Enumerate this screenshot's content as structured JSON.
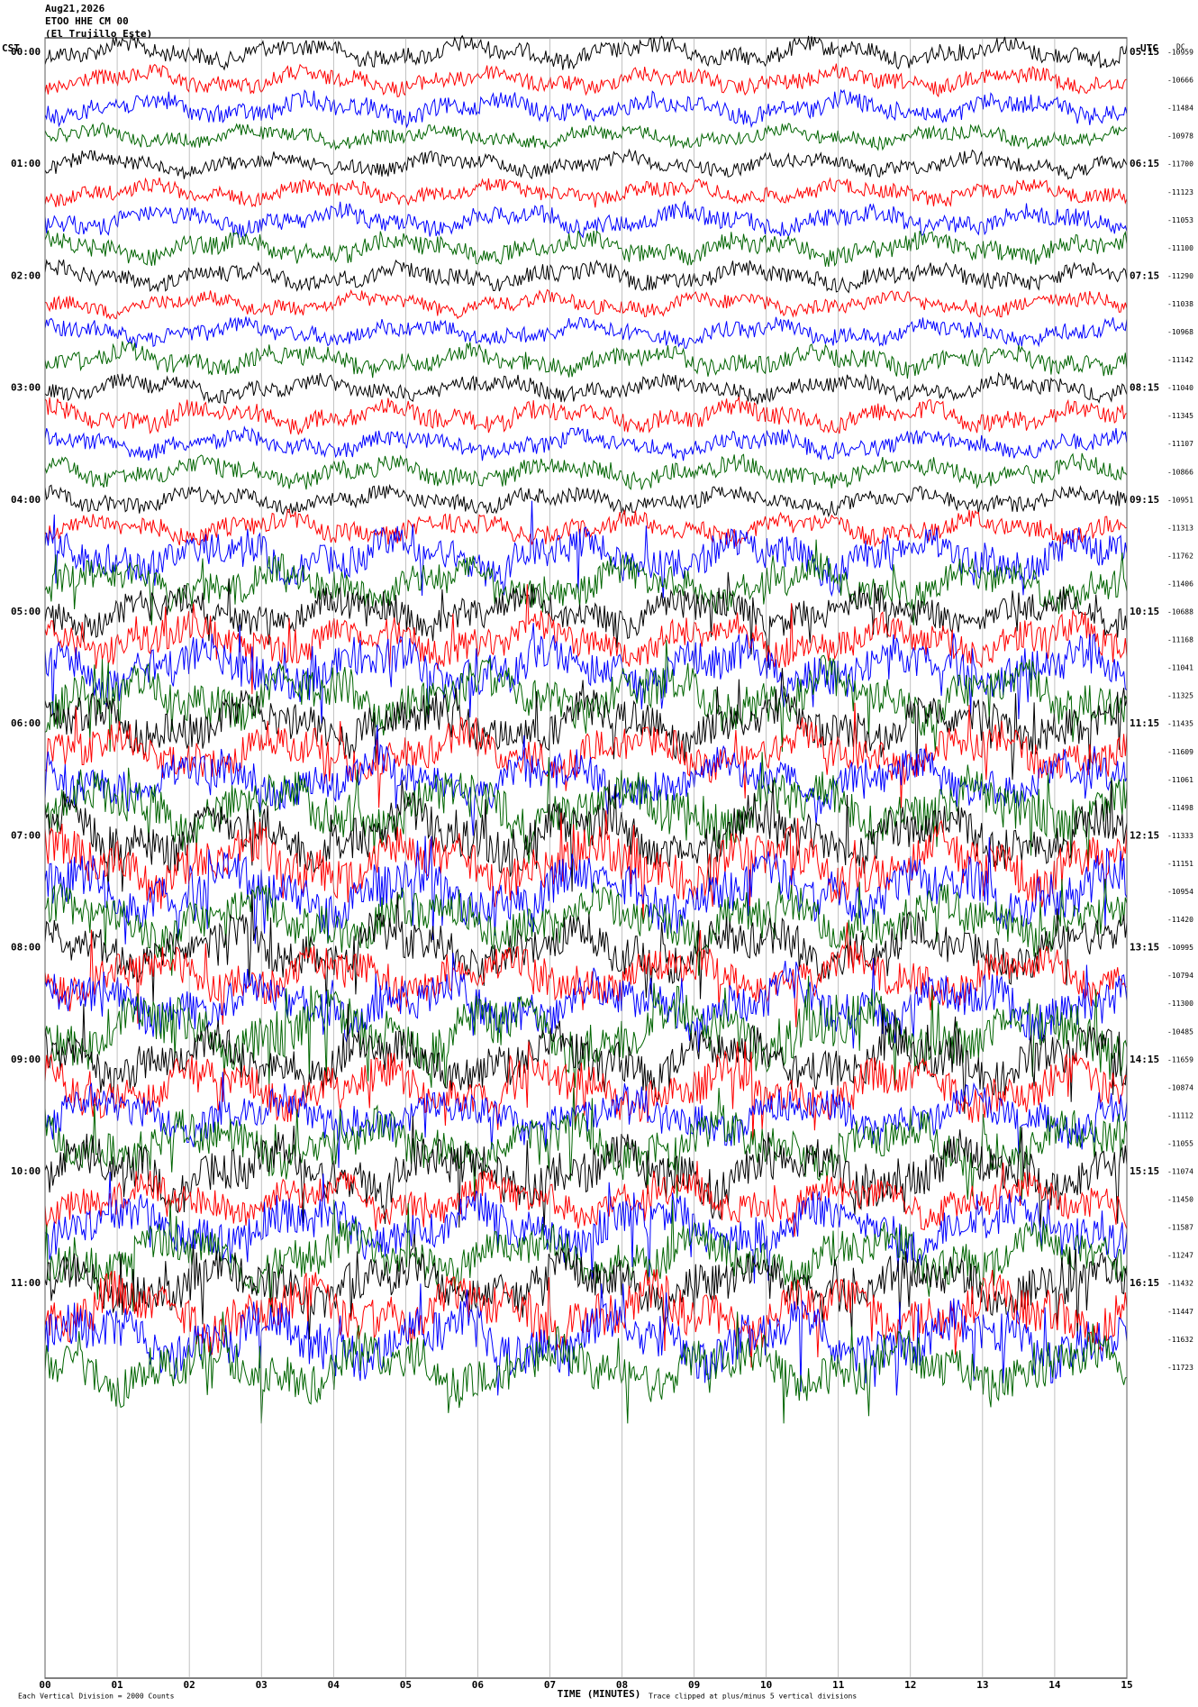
{
  "chart_data": {
    "type": "helicorder",
    "header": [
      "Aug21,2026",
      "ETOO HHE CM 00",
      "(El Trujillo Este)"
    ],
    "left_axis_label": "CST",
    "right_axis_label": "UTC",
    "offset_label": "DC",
    "cst_labels": [
      "00:00",
      "01:00",
      "02:00",
      "03:00",
      "04:00",
      "05:00",
      "06:00",
      "07:00",
      "08:00",
      "09:00",
      "10:00",
      "11:00"
    ],
    "utc_labels": [
      "05:15",
      "06:15",
      "07:15",
      "08:15",
      "09:15",
      "10:15",
      "11:15",
      "12:15",
      "13:15",
      "14:15",
      "15:15",
      "16:15"
    ],
    "dc_offsets": [
      -10959,
      -10666,
      -11484,
      -10978,
      -11700,
      -11123,
      -11053,
      -11100,
      -11290,
      -11038,
      -10968,
      -11142,
      -11040,
      -11345,
      -11107,
      -10866,
      -10951,
      -11313,
      -11762,
      -11406,
      -10688,
      -11168,
      -11041,
      -11325,
      -11435,
      -11609,
      -11061,
      -11498,
      -11333,
      -11151,
      -10954,
      -11420,
      -10995,
      -10794,
      -11300,
      -10485,
      -11659,
      -10874,
      -11112,
      -11055,
      -11074,
      -11450,
      -11587,
      -11247,
      -11432,
      -11447,
      -11632,
      -11723
    ],
    "trace_colors": [
      "#000000",
      "#ff0000",
      "#0000ff",
      "#006400"
    ],
    "xlabel": "TIME (MINUTES)",
    "xlim": [
      0,
      15
    ],
    "xticks": [
      {
        "value": 0,
        "label": "00"
      },
      {
        "value": 1,
        "label": "01"
      },
      {
        "value": 2,
        "label": "02"
      },
      {
        "value": 3,
        "label": "03"
      },
      {
        "value": 4,
        "label": "04"
      },
      {
        "value": 5,
        "label": "05"
      },
      {
        "value": 6,
        "label": "06"
      },
      {
        "value": 7,
        "label": "07"
      },
      {
        "value": 8,
        "label": "08"
      },
      {
        "value": 9,
        "label": "09"
      },
      10,
      11,
      12,
      13,
      14,
      15
    ],
    "footer_left": "Each Vertical Division = 2000 Counts",
    "footer_right": "Trace clipped at plus/minus 5 vertical divisions",
    "grid": true
  }
}
